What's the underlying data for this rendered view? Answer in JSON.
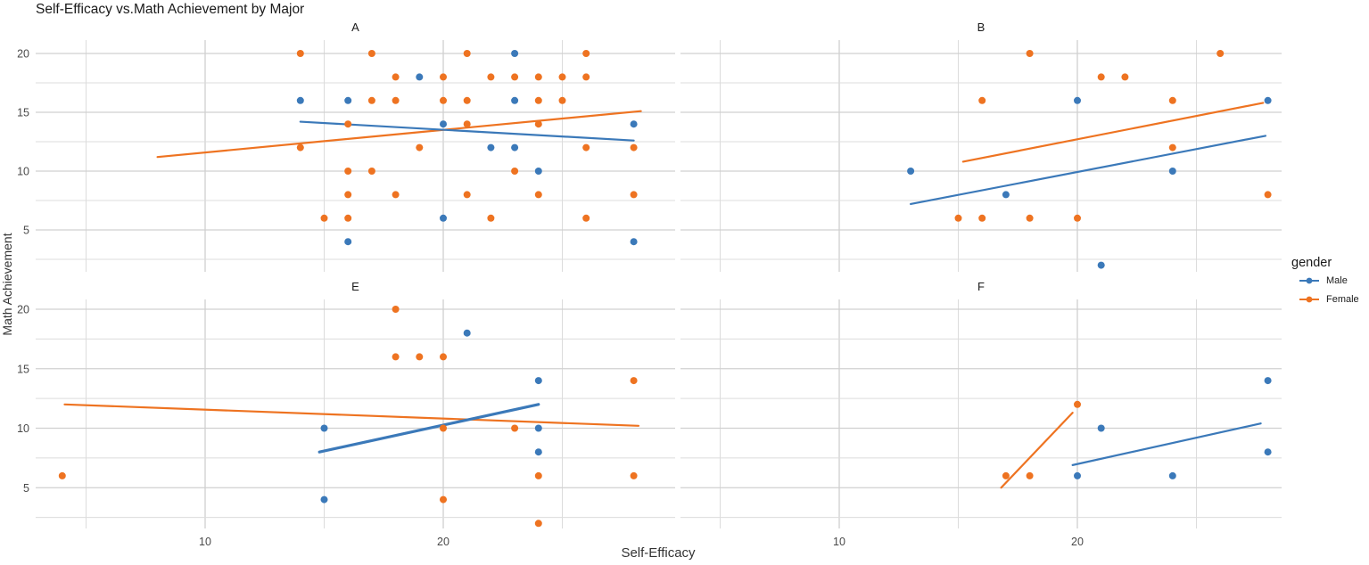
{
  "title": "Self-Efficacy vs.Math Achievement by Major",
  "axes": {
    "x_label": "Self-Efficacy",
    "y_label": "Math Achievement",
    "x_tick_labels": [
      "10",
      "20"
    ],
    "y_tick_labels": [
      "20",
      "15",
      "10",
      "5"
    ]
  },
  "legend": {
    "title": "gender",
    "entries": [
      {
        "label": "Male",
        "color": "#3b79b9"
      },
      {
        "label": "Female",
        "color": "#ee7321"
      }
    ]
  },
  "colors": {
    "male": "#3b79b9",
    "female": "#ee7321",
    "grid_major": "#d0d0d0",
    "grid_minor": "#dcdcdc",
    "tick_text": "#4a4a4a",
    "strip_text": "#1a1a1a"
  },
  "chart_data": {
    "type": "scatter",
    "title": "Self-Efficacy vs.Math Achievement by Major",
    "xlabel": "Self-Efficacy",
    "ylabel": "Math Achievement",
    "x_breaks": [
      10,
      20
    ],
    "x_gridlines": [
      5,
      10,
      15,
      20,
      25
    ],
    "y_breaks": [
      20,
      15,
      10,
      5
    ],
    "y_gridlines": [
      20,
      17.5,
      15,
      12.5,
      10,
      7.5,
      5,
      2.5
    ],
    "x_range_approx": [
      3,
      29.5
    ],
    "y_range_approx": [
      1.5,
      21
    ],
    "legend_series": [
      "Male",
      "Female"
    ],
    "facets": [
      {
        "label": "A",
        "row": 0,
        "col": 0,
        "male_points": [
          [
            14,
            16
          ],
          [
            16,
            16
          ],
          [
            16,
            4
          ],
          [
            19,
            18
          ],
          [
            20,
            14
          ],
          [
            20,
            6
          ],
          [
            22,
            12
          ],
          [
            23,
            20
          ],
          [
            23,
            16
          ],
          [
            23,
            12
          ],
          [
            24,
            10
          ],
          [
            28,
            14
          ],
          [
            28,
            4
          ]
        ],
        "female_points": [
          [
            14,
            20
          ],
          [
            14,
            12
          ],
          [
            15,
            6
          ],
          [
            16,
            14
          ],
          [
            16,
            10
          ],
          [
            16,
            8
          ],
          [
            16,
            6
          ],
          [
            17,
            20
          ],
          [
            17,
            16
          ],
          [
            17,
            10
          ],
          [
            18,
            18
          ],
          [
            18,
            16
          ],
          [
            18,
            8
          ],
          [
            19,
            12
          ],
          [
            20,
            18
          ],
          [
            20,
            16
          ],
          [
            21,
            20
          ],
          [
            21,
            16
          ],
          [
            21,
            14
          ],
          [
            21,
            8
          ],
          [
            22,
            18
          ],
          [
            22,
            6
          ],
          [
            23,
            18
          ],
          [
            23,
            10
          ],
          [
            24,
            18
          ],
          [
            24,
            16
          ],
          [
            24,
            14
          ],
          [
            24,
            8
          ],
          [
            25,
            18
          ],
          [
            25,
            16
          ],
          [
            26,
            20
          ],
          [
            26,
            18
          ],
          [
            26,
            12
          ],
          [
            26,
            6
          ],
          [
            28,
            12
          ],
          [
            28,
            8
          ]
        ],
        "male_trend": [
          [
            14,
            14.2
          ],
          [
            28,
            12.6
          ]
        ],
        "female_trend": [
          [
            8,
            11.2
          ],
          [
            28.3,
            15.1
          ]
        ]
      },
      {
        "label": "B",
        "row": 0,
        "col": 1,
        "male_points": [
          [
            13,
            10
          ],
          [
            17,
            8
          ],
          [
            20,
            16
          ],
          [
            21,
            2
          ],
          [
            24,
            10
          ],
          [
            28,
            16
          ]
        ],
        "female_points": [
          [
            15,
            6
          ],
          [
            16,
            16
          ],
          [
            16,
            6
          ],
          [
            18,
            20
          ],
          [
            18,
            6
          ],
          [
            20,
            6
          ],
          [
            21,
            18
          ],
          [
            22,
            18
          ],
          [
            24,
            16
          ],
          [
            24,
            12
          ],
          [
            26,
            20
          ],
          [
            28,
            8
          ]
        ],
        "male_trend": [
          [
            13,
            7.2
          ],
          [
            27.9,
            13.0
          ]
        ],
        "female_trend": [
          [
            15.2,
            10.8
          ],
          [
            27.8,
            15.8
          ]
        ]
      },
      {
        "label": "E",
        "row": 1,
        "col": 0,
        "male_points": [
          [
            15,
            10
          ],
          [
            15,
            4
          ],
          [
            21,
            18
          ],
          [
            24,
            14
          ],
          [
            24,
            10
          ],
          [
            24,
            8
          ]
        ],
        "female_points": [
          [
            4,
            6
          ],
          [
            18,
            20
          ],
          [
            18,
            16
          ],
          [
            19,
            16
          ],
          [
            20,
            16
          ],
          [
            20,
            10
          ],
          [
            20,
            4
          ],
          [
            23,
            10
          ],
          [
            24,
            6
          ],
          [
            24,
            2
          ],
          [
            28,
            14
          ],
          [
            28,
            6
          ]
        ],
        "male_trend": [
          [
            14.8,
            8.0
          ],
          [
            24,
            12.0
          ]
        ],
        "female_trend": [
          [
            4.1,
            12.0
          ],
          [
            28.2,
            10.2
          ]
        ]
      },
      {
        "label": "F",
        "row": 1,
        "col": 1,
        "male_points": [
          [
            20,
            6
          ],
          [
            21,
            10
          ],
          [
            24,
            6
          ],
          [
            28,
            14
          ],
          [
            28,
            8
          ]
        ],
        "female_points": [
          [
            17,
            6
          ],
          [
            18,
            6
          ],
          [
            20,
            12
          ]
        ],
        "male_trend": [
          [
            19.8,
            6.9
          ],
          [
            27.7,
            10.4
          ]
        ],
        "female_trend": [
          [
            16.8,
            5.0
          ],
          [
            19.8,
            11.3
          ]
        ]
      }
    ]
  }
}
